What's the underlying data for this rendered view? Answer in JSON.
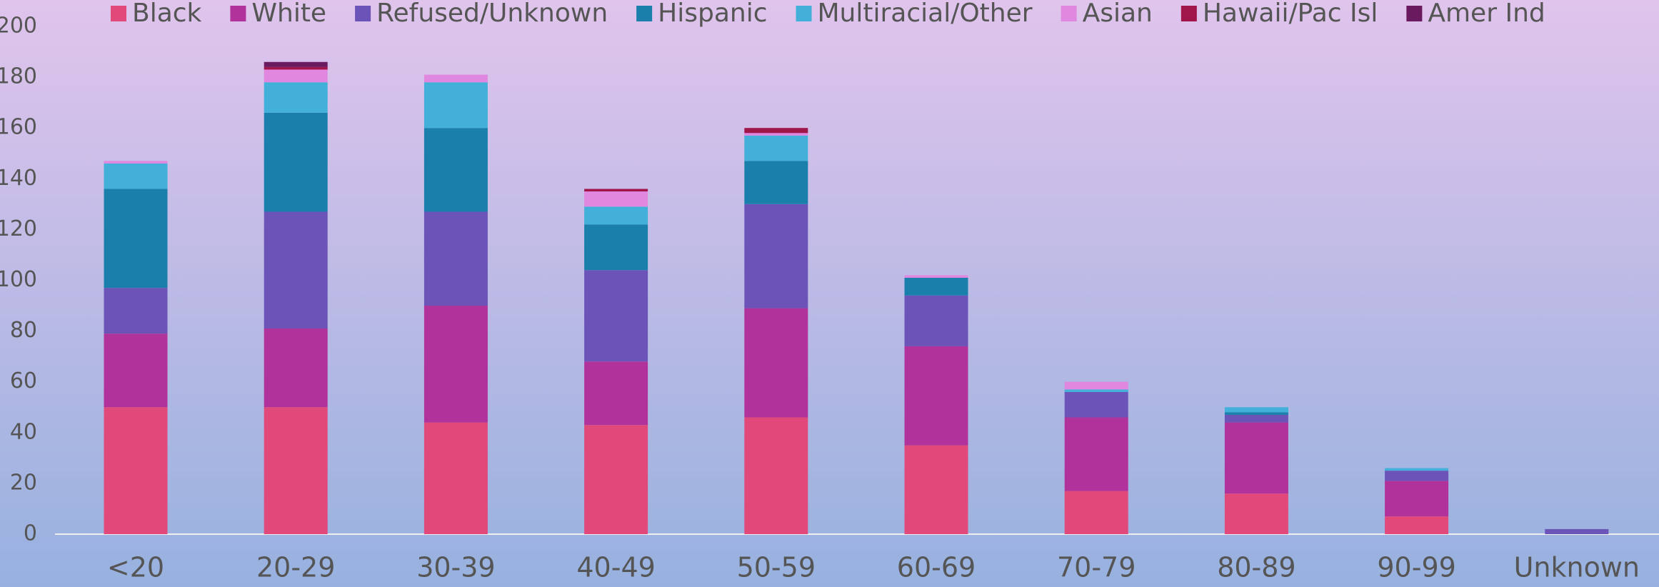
{
  "chart_data": {
    "type": "stacked_bar",
    "categories": [
      "<20",
      "20-29",
      "30-39",
      "40-49",
      "50-59",
      "60-69",
      "70-79",
      "80-89",
      "90-99",
      "Unknown"
    ],
    "series": [
      {
        "name": "Black",
        "color": "#e0497a",
        "values": [
          50,
          50,
          44,
          43,
          46,
          35,
          17,
          16,
          7,
          0
        ]
      },
      {
        "name": "White",
        "color": "#b0329a",
        "values": [
          29,
          31,
          46,
          25,
          43,
          39,
          29,
          28,
          14,
          0
        ]
      },
      {
        "name": "Refused/Unknown",
        "color": "#6b53b8",
        "values": [
          18,
          46,
          37,
          36,
          41,
          20,
          10,
          3,
          4,
          2
        ]
      },
      {
        "name": "Hispanic",
        "color": "#1b7fac",
        "values": [
          39,
          39,
          33,
          18,
          17,
          7,
          0,
          1,
          0,
          0
        ]
      },
      {
        "name": "Multiracial/Other",
        "color": "#42b0d8",
        "values": [
          10,
          12,
          18,
          7,
          10,
          0,
          1,
          2,
          1,
          0
        ]
      },
      {
        "name": "Asian",
        "color": "#e087e0",
        "values": [
          1,
          5,
          3,
          6,
          1,
          1,
          3,
          0,
          0,
          0
        ]
      },
      {
        "name": "Hawaii/Pac Isl",
        "color": "#a0154a",
        "values": [
          0,
          1,
          0,
          1,
          2,
          0,
          0,
          0,
          0,
          0
        ]
      },
      {
        "name": "Amer Ind",
        "color": "#6a1a5e",
        "values": [
          0,
          2,
          0,
          0,
          0,
          0,
          0,
          0,
          0,
          0
        ]
      }
    ],
    "ylim": [
      0,
      200
    ],
    "yticks": [
      0,
      20,
      40,
      60,
      80,
      100,
      120,
      140,
      160,
      180,
      200
    ],
    "legend": "top"
  }
}
